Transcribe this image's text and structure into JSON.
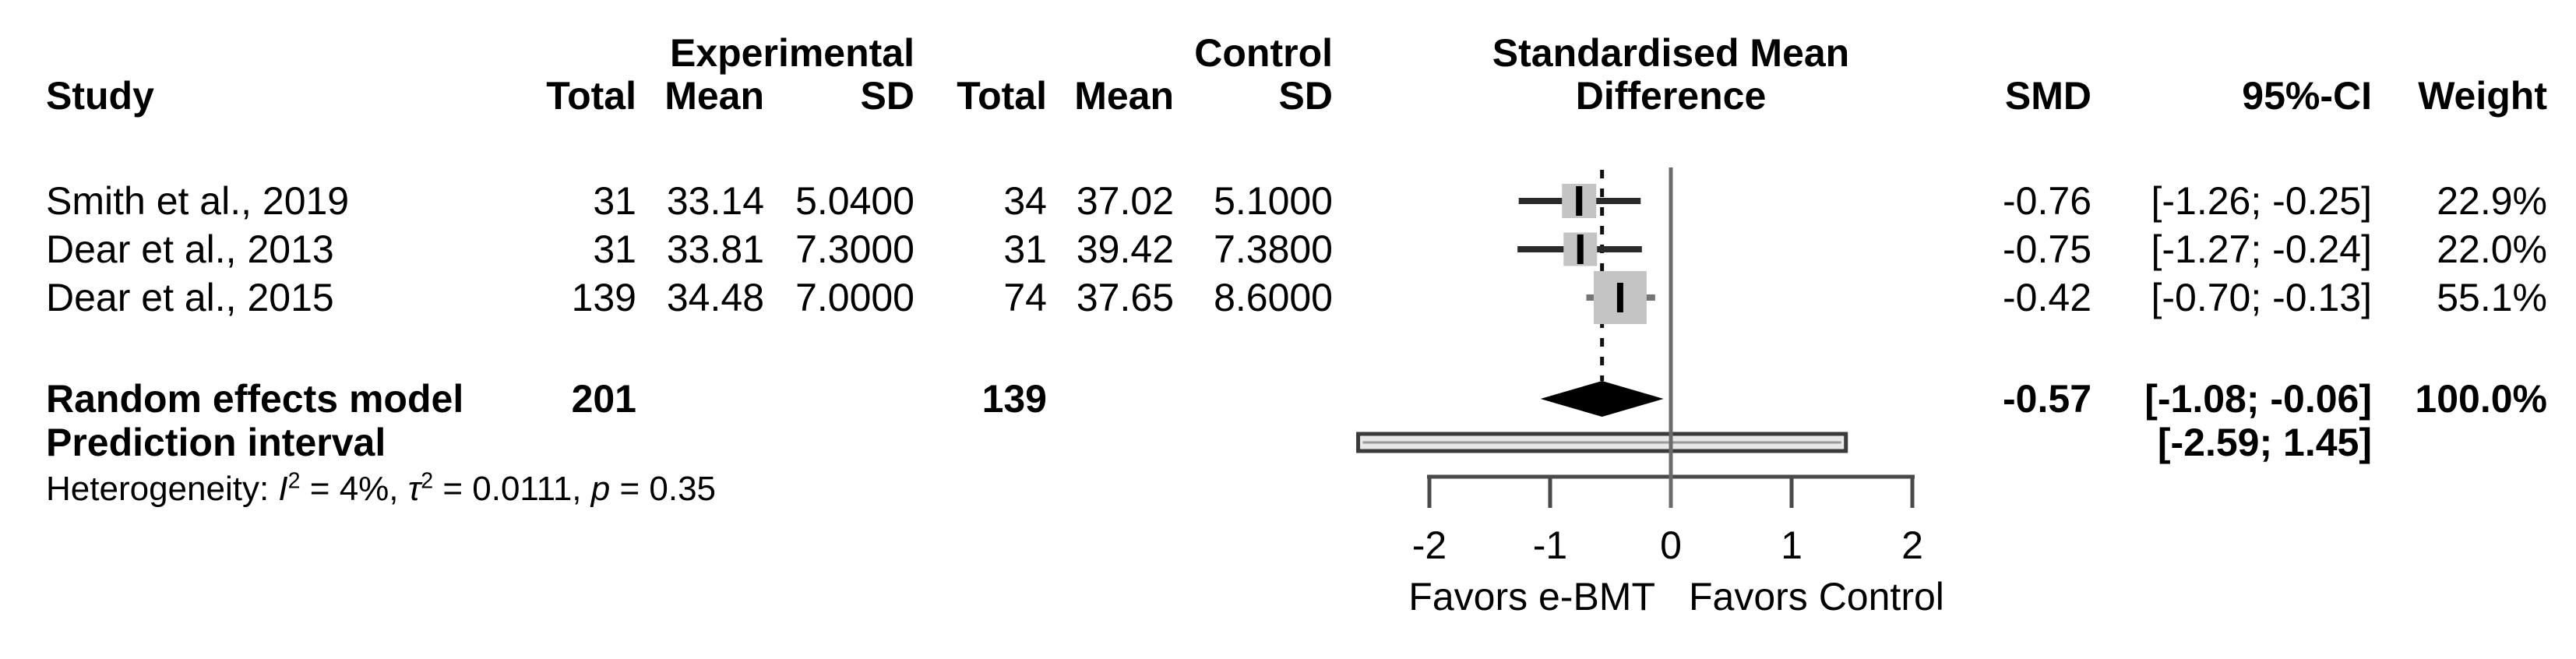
{
  "header": {
    "study": "Study",
    "experimental": "Experimental",
    "control": "Control",
    "exp_total": "Total",
    "exp_mean": "Mean",
    "exp_sd": "SD",
    "ctrl_total": "Total",
    "ctrl_mean": "Mean",
    "ctrl_sd": "SD",
    "effect_line1": "Standardised Mean",
    "effect_line2": "Difference",
    "smd": "SMD",
    "ci": "95%-CI",
    "weight": "Weight"
  },
  "chart_data": {
    "type": "forest",
    "effect_measure": "SMD",
    "xlim": [
      -2,
      2
    ],
    "tick_values": [
      -2,
      -1,
      0,
      1,
      2
    ],
    "tick_labels": [
      "-2",
      "-1",
      "0",
      "1",
      "2"
    ],
    "zero_line": 0,
    "pooled_effect_line": -0.57,
    "grid": false,
    "studies": [
      {
        "name": "Smith et al., 2019",
        "exp_total": "31",
        "exp_mean": "33.14",
        "exp_sd": "5.0400",
        "ctrl_total": "34",
        "ctrl_mean": "37.02",
        "ctrl_sd": "5.1000",
        "smd_text": "-0.76",
        "smd": -0.76,
        "ci_text": "[-1.26; -0.25]",
        "ci_low": -1.26,
        "ci_high": -0.25,
        "weight_text": "22.9%",
        "weight": 22.9
      },
      {
        "name": "Dear et al., 2013",
        "exp_total": "31",
        "exp_mean": "33.81",
        "exp_sd": "7.3000",
        "ctrl_total": "31",
        "ctrl_mean": "39.42",
        "ctrl_sd": "7.3800",
        "smd_text": "-0.75",
        "smd": -0.75,
        "ci_text": "[-1.27; -0.24]",
        "ci_low": -1.27,
        "ci_high": -0.24,
        "weight_text": "22.0%",
        "weight": 22.0
      },
      {
        "name": "Dear et al., 2015",
        "exp_total": "139",
        "exp_mean": "34.48",
        "exp_sd": "7.0000",
        "ctrl_total": "74",
        "ctrl_mean": "37.65",
        "ctrl_sd": "8.6000",
        "smd_text": "-0.42",
        "smd": -0.42,
        "ci_text": "[-0.70; -0.13]",
        "ci_low": -0.7,
        "ci_high": -0.13,
        "weight_text": "55.1%",
        "weight": 55.1
      }
    ],
    "pooled": {
      "name": "Random effects model",
      "exp_total": "201",
      "ctrl_total": "139",
      "smd_text": "-0.57",
      "smd": -0.57,
      "ci_text": "[-1.08; -0.06]",
      "ci_low": -1.08,
      "ci_high": -0.06,
      "weight_text": "100.0%"
    },
    "prediction_interval": {
      "name": "Prediction interval",
      "ci_text": "[-2.59; 1.45]",
      "low": -2.59,
      "high": 1.45
    },
    "heterogeneity": {
      "prefix": "Heterogeneity: ",
      "i_sym": "I",
      "i_sup": "2",
      "i_val": " = 4%, ",
      "tau_sym": "τ",
      "tau_sup": "2",
      "tau_val": " = 0.0111, ",
      "p_sym": "p",
      "p_val": " = 0.35"
    },
    "axis_labels": {
      "left": "Favors e-BMT",
      "right": "Favors Control"
    }
  },
  "style": {
    "background": "#ffffff",
    "text": "#000000",
    "square_fill": "#c4c4c4",
    "ci_line": "#2a2a2a",
    "ci_line_large": "#757575",
    "marker_tick": "#000000",
    "diamond": "#000000",
    "zero_line": "#6b6b6b",
    "ref_dash": "#111111",
    "axis": "#4a4a4a",
    "pred_fill": "#e8e8e8",
    "pred_border": "#3a3a3a",
    "pred_inner": "#999999"
  }
}
